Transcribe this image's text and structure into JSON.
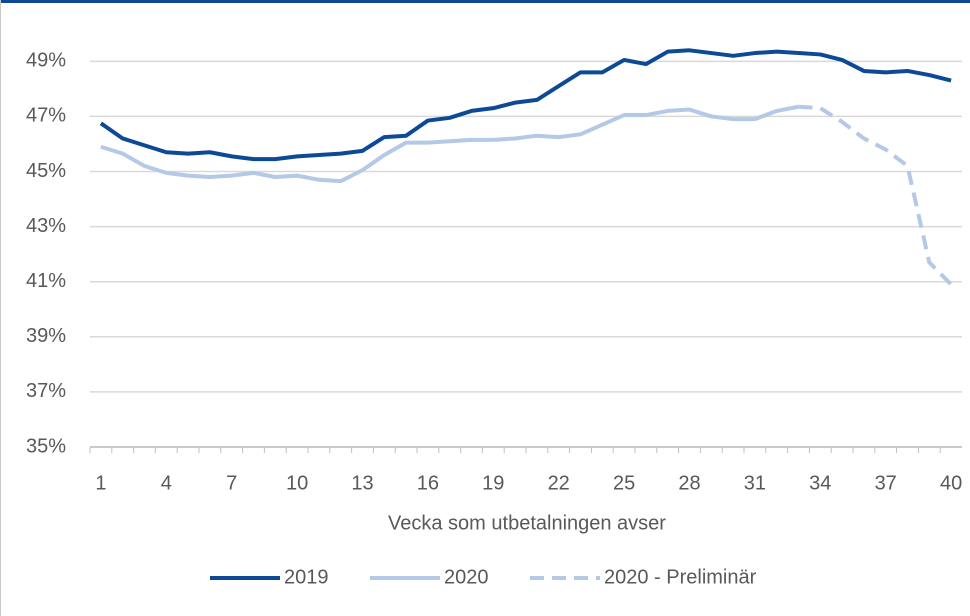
{
  "chart_data": {
    "type": "line",
    "x_label": "Vecka som utbetalningen avser",
    "categories": [
      "1",
      null,
      null,
      "4",
      null,
      null,
      "7",
      null,
      null,
      "10",
      null,
      null,
      "13",
      null,
      null,
      "16",
      null,
      null,
      "19",
      null,
      null,
      "22",
      null,
      null,
      "25",
      null,
      null,
      "28",
      null,
      null,
      "31",
      null,
      null,
      "34",
      null,
      null,
      "37",
      null,
      null,
      "40"
    ],
    "series": [
      {
        "name": "2019",
        "color": "#0d4a96",
        "dashed": false,
        "values": [
          46.75,
          46.2,
          45.95,
          45.7,
          45.65,
          45.7,
          45.55,
          45.45,
          45.45,
          45.55,
          45.6,
          45.65,
          45.75,
          46.25,
          46.3,
          46.85,
          46.95,
          47.2,
          47.3,
          47.5,
          47.6,
          48.1,
          48.6,
          48.6,
          49.05,
          48.9,
          49.35,
          49.4,
          49.3,
          49.2,
          49.3,
          49.35,
          49.3,
          49.25,
          49.05,
          48.65,
          48.6,
          48.65,
          48.5,
          48.3
        ]
      },
      {
        "name": "2020",
        "color": "#b4c9e6",
        "dashed": false,
        "values": [
          45.9,
          45.65,
          45.2,
          44.95,
          44.85,
          44.8,
          44.85,
          44.95,
          44.8,
          44.85,
          44.7,
          44.65,
          45.05,
          45.6,
          46.05,
          46.05,
          46.1,
          46.15,
          46.15,
          46.2,
          46.3,
          46.25,
          46.35,
          46.7,
          47.05,
          47.05,
          47.2,
          47.25,
          47.0,
          46.9,
          46.9,
          47.2,
          47.35,
          null,
          null,
          null,
          null,
          null,
          null,
          null
        ]
      },
      {
        "name": "2020 - Preliminär",
        "color": "#b4c9e6",
        "dashed": true,
        "values": [
          null,
          null,
          null,
          null,
          null,
          null,
          null,
          null,
          null,
          null,
          null,
          null,
          null,
          null,
          null,
          null,
          null,
          null,
          null,
          null,
          null,
          null,
          null,
          null,
          null,
          null,
          null,
          null,
          null,
          null,
          null,
          null,
          47.35,
          47.3,
          46.8,
          46.2,
          45.8,
          45.2,
          41.7,
          40.9
        ]
      }
    ],
    "ylim": [
      35,
      50.5
    ],
    "yticks": [
      {
        "value": 35,
        "label": "35%"
      },
      {
        "value": 37,
        "label": "37%"
      },
      {
        "value": 39,
        "label": "39%"
      },
      {
        "value": 41,
        "label": "41%"
      },
      {
        "value": 43,
        "label": "43%"
      },
      {
        "value": 45,
        "label": "45%"
      },
      {
        "value": 47,
        "label": "47%"
      },
      {
        "value": 49,
        "label": "49%"
      }
    ],
    "grid": true,
    "legend": "bottom"
  }
}
